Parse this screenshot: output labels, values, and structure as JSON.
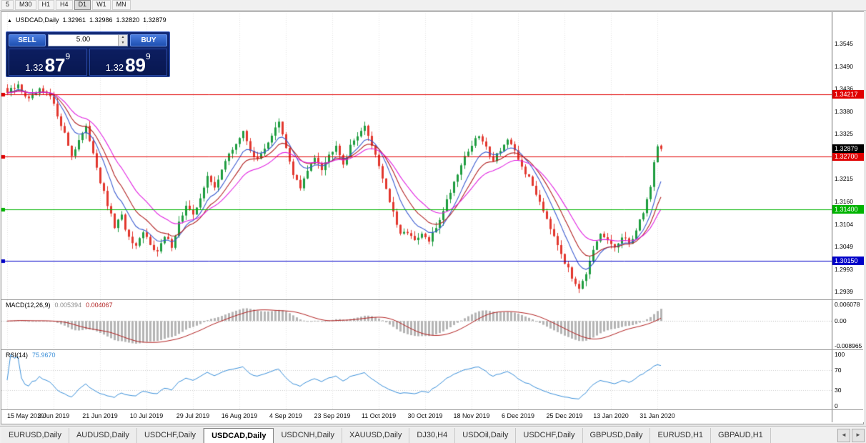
{
  "icons": {
    "up_triangle": "▲",
    "spin_up": "▲",
    "spin_down": "▼",
    "left_arrow": "◄",
    "right_arrow": "►"
  },
  "toolbar": {
    "timeframes": [
      "5",
      "M30",
      "H1",
      "H4",
      "D1",
      "W1",
      "MN"
    ],
    "active": "D1"
  },
  "chart_header": {
    "symbol_period": "USDCAD,Daily",
    "open": "1.32961",
    "high": "1.32986",
    "low": "1.32820",
    "close": "1.32879"
  },
  "trade_panel": {
    "sell_label": "SELL",
    "buy_label": "BUY",
    "volume": "5.00",
    "sell_price_main": "1.32",
    "sell_price_big": "87",
    "sell_price_sup": "9",
    "buy_price_main": "1.32",
    "buy_price_big": "89",
    "buy_price_sup": "9"
  },
  "chart_data": [
    {
      "type": "candlestick",
      "symbol": "USDCAD",
      "timeframe": "Daily",
      "ohlc": {
        "open": 1.32961,
        "high": 1.32986,
        "low": 1.3282,
        "close": 1.32879
      },
      "y_axis_ticks": [
        "1.3545",
        "1.3490",
        "1.3436",
        "1.3380",
        "1.3325",
        "1.3270",
        "1.3215",
        "1.3160",
        "1.3104",
        "1.3049",
        "1.2993",
        "1.2939"
      ],
      "y_render_range": [
        1.292,
        1.3619
      ],
      "x_labels": [
        "15 May 2019",
        "3 Jun 2019",
        "21 Jun 2019",
        "10 Jul 2019",
        "29 Jul 2019",
        "16 Aug 2019",
        "4 Sep 2019",
        "23 Sep 2019",
        "11 Oct 2019",
        "30 Oct 2019",
        "18 Nov 2019",
        "6 Dec 2019",
        "25 Dec 2019",
        "13 Jan 2020",
        "31 Jan 2020"
      ],
      "hlines": [
        {
          "value": 1.34217,
          "label": "1.34217",
          "color": "#e00000"
        },
        {
          "value": 1.327,
          "label": "1.32700",
          "color": "#e00000"
        },
        {
          "value": 1.314,
          "label": "1.31400",
          "color": "#00b400"
        },
        {
          "value": 1.3015,
          "label": "1.30150",
          "color": "#0000c8"
        }
      ],
      "current_price": {
        "value": 1.32879,
        "label": "1.32879",
        "color": "#000000"
      },
      "candle_count": 184,
      "up_color": "#1f9d40",
      "down_color": "#e2372e",
      "moving_averages": [
        {
          "period": 8,
          "type": "ema",
          "color": "#3b5bd0"
        },
        {
          "period": 13,
          "type": "ema",
          "color": "#b22222"
        },
        {
          "period": 21,
          "type": "ema",
          "color": "#e020e0"
        }
      ],
      "close_path": [
        [
          0,
          1.3425
        ],
        [
          3,
          1.3442
        ],
        [
          6,
          1.3408
        ],
        [
          9,
          1.343
        ],
        [
          12,
          1.3415
        ],
        [
          15,
          1.335
        ],
        [
          18,
          1.3272
        ],
        [
          20,
          1.331
        ],
        [
          22,
          1.3338
        ],
        [
          24,
          1.3282
        ],
        [
          26,
          1.3208
        ],
        [
          28,
          1.315
        ],
        [
          30,
          1.3098
        ],
        [
          32,
          1.3122
        ],
        [
          34,
          1.3068
        ],
        [
          36,
          1.3045
        ],
        [
          38,
          1.3082
        ],
        [
          40,
          1.3058
        ],
        [
          42,
          1.3036
        ],
        [
          44,
          1.3072
        ],
        [
          46,
          1.3052
        ],
        [
          48,
          1.3108
        ],
        [
          50,
          1.3148
        ],
        [
          52,
          1.3122
        ],
        [
          54,
          1.3172
        ],
        [
          56,
          1.3218
        ],
        [
          58,
          1.3192
        ],
        [
          60,
          1.3242
        ],
        [
          62,
          1.3272
        ],
        [
          64,
          1.3302
        ],
        [
          66,
          1.3328
        ],
        [
          68,
          1.3288
        ],
        [
          70,
          1.3258
        ],
        [
          72,
          1.3292
        ],
        [
          74,
          1.3322
        ],
        [
          76,
          1.3352
        ],
        [
          78,
          1.3288
        ],
        [
          80,
          1.3228
        ],
        [
          82,
          1.3192
        ],
        [
          84,
          1.3232
        ],
        [
          86,
          1.3272
        ],
        [
          88,
          1.3242
        ],
        [
          90,
          1.3272
        ],
        [
          92,
          1.3302
        ],
        [
          94,
          1.3252
        ],
        [
          96,
          1.3292
        ],
        [
          98,
          1.3325
        ],
        [
          100,
          1.334
        ],
        [
          102,
          1.33
        ],
        [
          104,
          1.3248
        ],
        [
          106,
          1.319
        ],
        [
          108,
          1.313
        ],
        [
          110,
          1.3075
        ],
        [
          112,
          1.3088
        ],
        [
          114,
          1.306
        ],
        [
          116,
          1.3078
        ],
        [
          118,
          1.3062
        ],
        [
          120,
          1.3095
        ],
        [
          122,
          1.314
        ],
        [
          124,
          1.3185
        ],
        [
          126,
          1.323
        ],
        [
          128,
          1.327
        ],
        [
          130,
          1.3298
        ],
        [
          132,
          1.332
        ],
        [
          134,
          1.329
        ],
        [
          136,
          1.3262
        ],
        [
          138,
          1.3288
        ],
        [
          140,
          1.331
        ],
        [
          142,
          1.3278
        ],
        [
          144,
          1.3245
        ],
        [
          146,
          1.3215
        ],
        [
          148,
          1.318
        ],
        [
          150,
          1.314
        ],
        [
          152,
          1.3098
        ],
        [
          154,
          1.3058
        ],
        [
          156,
          1.3012
        ],
        [
          158,
          1.2972
        ],
        [
          160,
          1.2952
        ],
        [
          162,
          1.2985
        ],
        [
          164,
          1.3035
        ],
        [
          166,
          1.3078
        ],
        [
          168,
          1.3062
        ],
        [
          170,
          1.3048
        ],
        [
          172,
          1.3068
        ],
        [
          174,
          1.3058
        ],
        [
          176,
          1.3088
        ],
        [
          178,
          1.3135
        ],
        [
          180,
          1.3195
        ],
        [
          181,
          1.3255
        ],
        [
          182,
          1.3298
        ],
        [
          183,
          1.3288
        ]
      ]
    },
    {
      "type": "macd",
      "label": "MACD(12,26,9)",
      "fast": 12,
      "slow": 26,
      "signal": 9,
      "main_value": "0.005394",
      "signal_value": "0.004067",
      "y_ticks": [
        {
          "v": 0.006078,
          "label": "0.006078"
        },
        {
          "v": 0,
          "label": "0.00"
        },
        {
          "v": -0.008965,
          "label": "-0.008965"
        }
      ],
      "y_render_range": [
        -0.0102,
        0.0075
      ],
      "hist_color": "#b4b4b4",
      "signal_color": "#b22222"
    },
    {
      "type": "rsi",
      "label": "RSI(14)",
      "period": 14,
      "value": "75.9670",
      "y_ticks": [
        {
          "v": 100,
          "label": "100"
        },
        {
          "v": 70,
          "label": "70"
        },
        {
          "v": 30,
          "label": "30"
        },
        {
          "v": 0,
          "label": "0"
        }
      ],
      "levels": [
        70,
        30
      ],
      "y_render_range": [
        0,
        100
      ],
      "line_color": "#3a8fd9"
    }
  ],
  "tabs": {
    "items": [
      "EURUSD,Daily",
      "AUDUSD,Daily",
      "USDCHF,Daily",
      "USDCAD,Daily",
      "USDCNH,Daily",
      "XAUUSD,Daily",
      "DJ30,H4",
      "USDOil,Daily",
      "USDCHF,Daily",
      "GBPUSD,Daily",
      "EURUSD,H1",
      "GBPAUD,H1"
    ],
    "active_index": 3
  }
}
